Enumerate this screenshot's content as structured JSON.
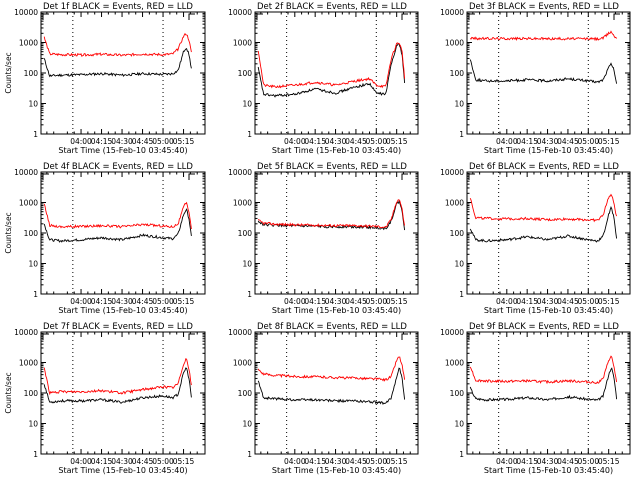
{
  "page": {
    "background": "#ffffff"
  },
  "common": {
    "xlabel": "Start Time (15-Feb-10 03:45:40)",
    "ylabel": "Counts/sec",
    "x_ticks": [
      "04:00",
      "04:15",
      "04:30",
      "04:45",
      "05:00",
      "05:15"
    ],
    "x_tick_values_min": [
      255,
      270,
      285,
      300,
      315,
      330
    ],
    "xlim_min": [
      225.7,
      345.7
    ],
    "y_ticks": [
      "1",
      "10",
      "100",
      "1000",
      "10000"
    ],
    "y_tick_values": [
      1,
      10,
      100,
      1000,
      10000
    ],
    "y_scale": "log",
    "ylim": [
      1,
      10000
    ],
    "events_color": "#000000",
    "lld_color": "#ff0000",
    "dotted_lines_min": [
      249,
      315
    ]
  },
  "chart_data": [
    {
      "type": "line",
      "title": "Det 1f BLACK = Events, RED = LLD",
      "dotted_lines_min": [
        249,
        315
      ],
      "series": [
        {
          "name": "Events",
          "color": "#000000",
          "x": [
            228,
            232,
            240,
            255,
            270,
            285,
            300,
            315,
            322,
            326,
            330,
            332,
            334,
            336
          ],
          "y": [
            300,
            80,
            85,
            88,
            95,
            85,
            95,
            90,
            95,
            120,
            500,
            700,
            400,
            120
          ]
        },
        {
          "name": "LLD",
          "color": "#ff0000",
          "x": [
            228,
            232,
            240,
            255,
            270,
            285,
            300,
            315,
            322,
            326,
            330,
            332,
            334,
            336
          ],
          "y": [
            1500,
            420,
            400,
            390,
            410,
            380,
            420,
            400,
            420,
            600,
            1600,
            2000,
            1200,
            400
          ]
        }
      ]
    },
    {
      "type": "line",
      "title": "Det 2f BLACK = Events, RED = LLD",
      "dotted_lines_min": [
        249,
        315
      ],
      "series": [
        {
          "name": "Events",
          "color": "#000000",
          "x": [
            228,
            232,
            240,
            255,
            270,
            285,
            300,
            310,
            315,
            322,
            326,
            330,
            332,
            334,
            336
          ],
          "y": [
            150,
            20,
            18,
            20,
            30,
            22,
            35,
            45,
            22,
            20,
            200,
            800,
            900,
            400,
            40
          ]
        },
        {
          "name": "LLD",
          "color": "#ff0000",
          "x": [
            228,
            232,
            240,
            255,
            270,
            285,
            300,
            310,
            315,
            322,
            326,
            330,
            332,
            334,
            336
          ],
          "y": [
            600,
            40,
            35,
            40,
            50,
            40,
            55,
            65,
            40,
            35,
            300,
            900,
            1000,
            500,
            60
          ]
        }
      ]
    },
    {
      "type": "line",
      "title": "Det 3f BLACK = Events, RED = LLD",
      "dotted_lines_min": [
        249,
        315
      ],
      "series": [
        {
          "name": "Events",
          "color": "#000000",
          "x": [
            228,
            232,
            240,
            255,
            270,
            285,
            300,
            315,
            322,
            326,
            330,
            332,
            334,
            336
          ],
          "y": [
            300,
            60,
            55,
            55,
            60,
            55,
            65,
            55,
            50,
            60,
            150,
            200,
            120,
            40
          ]
        },
        {
          "name": "LLD",
          "color": "#ff0000",
          "x": [
            228,
            232,
            240,
            255,
            270,
            285,
            300,
            315,
            322,
            326,
            330,
            332,
            334,
            336
          ],
          "y": [
            1400,
            1350,
            1350,
            1350,
            1350,
            1330,
            1330,
            1330,
            1300,
            1400,
            2000,
            2300,
            1600,
            1400
          ]
        }
      ]
    },
    {
      "type": "line",
      "title": "Det 4f BLACK = Events, RED = LLD",
      "dotted_lines_min": [
        249,
        315
      ],
      "series": [
        {
          "name": "Events",
          "color": "#000000",
          "x": [
            228,
            232,
            240,
            255,
            270,
            285,
            300,
            315,
            322,
            326,
            330,
            332,
            334,
            336
          ],
          "y": [
            200,
            60,
            55,
            60,
            70,
            60,
            85,
            70,
            65,
            90,
            400,
            600,
            300,
            60
          ]
        },
        {
          "name": "LLD",
          "color": "#ff0000",
          "x": [
            228,
            232,
            240,
            255,
            270,
            285,
            300,
            315,
            322,
            326,
            330,
            332,
            334,
            336
          ],
          "y": [
            900,
            180,
            160,
            165,
            175,
            160,
            190,
            170,
            160,
            200,
            700,
            1000,
            500,
            120
          ]
        }
      ]
    },
    {
      "type": "line",
      "title": "Det 5f BLACK = Events, RED = LLD",
      "dotted_lines_min": [
        249,
        315
      ],
      "series": [
        {
          "name": "Events",
          "color": "#000000",
          "x": [
            228,
            232,
            240,
            255,
            270,
            285,
            300,
            315,
            322,
            326,
            330,
            332,
            334,
            336
          ],
          "y": [
            240,
            190,
            180,
            170,
            165,
            160,
            160,
            150,
            140,
            250,
            900,
            1100,
            500,
            120
          ]
        },
        {
          "name": "LLD",
          "color": "#ff0000",
          "x": [
            228,
            232,
            240,
            255,
            270,
            285,
            300,
            315,
            322,
            326,
            330,
            332,
            334,
            336
          ],
          "y": [
            260,
            210,
            195,
            185,
            180,
            175,
            175,
            165,
            155,
            280,
            1100,
            1300,
            600,
            150
          ]
        }
      ]
    },
    {
      "type": "line",
      "title": "Det 6f BLACK = Events, RED = LLD",
      "dotted_lines_min": [
        249,
        315
      ],
      "series": [
        {
          "name": "Events",
          "color": "#000000",
          "x": [
            228,
            232,
            240,
            255,
            270,
            285,
            300,
            315,
            322,
            326,
            330,
            332,
            334,
            336
          ],
          "y": [
            150,
            60,
            55,
            60,
            75,
            60,
            80,
            60,
            55,
            80,
            400,
            700,
            300,
            60
          ]
        },
        {
          "name": "LLD",
          "color": "#ff0000",
          "x": [
            228,
            232,
            240,
            255,
            270,
            285,
            300,
            315,
            322,
            326,
            330,
            332,
            334,
            336
          ],
          "y": [
            1500,
            320,
            300,
            290,
            300,
            270,
            290,
            270,
            260,
            400,
            1500,
            1800,
            900,
            300
          ]
        }
      ]
    },
    {
      "type": "line",
      "title": "Det 7f BLACK = Events, RED = LLD",
      "dotted_lines_min": [
        249,
        315
      ],
      "series": [
        {
          "name": "Events",
          "color": "#000000",
          "x": [
            228,
            232,
            240,
            255,
            270,
            285,
            300,
            315,
            322,
            326,
            330,
            332,
            334,
            336
          ],
          "y": [
            200,
            50,
            55,
            55,
            60,
            50,
            70,
            80,
            70,
            90,
            450,
            700,
            300,
            60
          ]
        },
        {
          "name": "LLD",
          "color": "#ff0000",
          "x": [
            228,
            232,
            240,
            255,
            270,
            285,
            300,
            315,
            322,
            326,
            330,
            332,
            334,
            336
          ],
          "y": [
            700,
            100,
            110,
            110,
            120,
            100,
            130,
            160,
            150,
            200,
            900,
            1400,
            600,
            150
          ]
        }
      ]
    },
    {
      "type": "line",
      "title": "Det 8f BLACK = Events, RED = LLD",
      "dotted_lines_min": [
        249,
        315
      ],
      "series": [
        {
          "name": "Events",
          "color": "#000000",
          "x": [
            228,
            232,
            240,
            255,
            270,
            285,
            300,
            315,
            322,
            326,
            330,
            332,
            334,
            336
          ],
          "y": [
            250,
            70,
            65,
            60,
            60,
            55,
            55,
            50,
            45,
            70,
            350,
            700,
            300,
            50
          ]
        },
        {
          "name": "LLD",
          "color": "#ff0000",
          "x": [
            228,
            232,
            240,
            255,
            270,
            285,
            300,
            315,
            322,
            326,
            330,
            332,
            334,
            336
          ],
          "y": [
            600,
            420,
            380,
            350,
            340,
            320,
            310,
            290,
            270,
            350,
            1200,
            1600,
            800,
            250
          ]
        }
      ]
    },
    {
      "type": "line",
      "title": "Det 9f BLACK = Events, RED = LLD",
      "dotted_lines_min": [
        249,
        315
      ],
      "series": [
        {
          "name": "Events",
          "color": "#000000",
          "x": [
            228,
            232,
            240,
            255,
            270,
            285,
            300,
            315,
            322,
            326,
            330,
            332,
            334,
            336
          ],
          "y": [
            150,
            65,
            60,
            62,
            70,
            60,
            75,
            62,
            58,
            80,
            400,
            700,
            300,
            60
          ]
        },
        {
          "name": "LLD",
          "color": "#ff0000",
          "x": [
            228,
            232,
            240,
            255,
            270,
            285,
            300,
            315,
            322,
            326,
            330,
            332,
            334,
            336
          ],
          "y": [
            800,
            260,
            250,
            240,
            250,
            230,
            250,
            230,
            220,
            300,
            1200,
            1600,
            700,
            200
          ]
        }
      ]
    }
  ]
}
